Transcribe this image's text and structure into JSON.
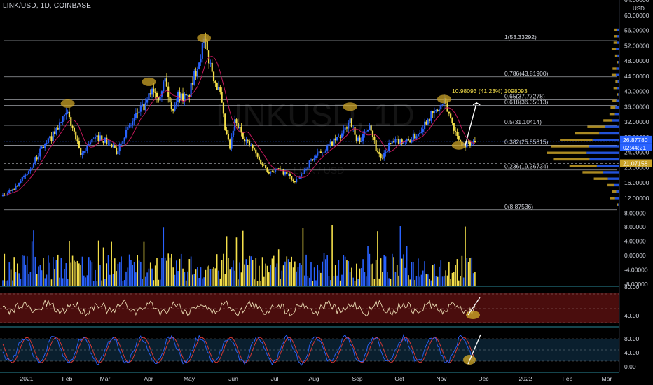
{
  "header": {
    "title": "LINK/USD, 1D, COINBASE"
  },
  "watermark": {
    "big": "LINKUSD, 1D",
    "small": "LINK / USD"
  },
  "colors": {
    "bg": "#000000",
    "up": "#2962ff",
    "down": "#f5e04a",
    "fib": "#d1d4dc",
    "ma": "#c2185b",
    "highlight": "#c9a227",
    "rsi_bg": "#4a0d0d",
    "rsi_line": "#e8d8b0",
    "stoch_k": "#2962ff",
    "stoch_d": "#e53935",
    "axis_text": "#d1d4dc",
    "sep": "#2a8a9a"
  },
  "chart_data": {
    "type": "line",
    "title": "LINK/USD, 1D, COINBASE",
    "x_labels": [
      "2021",
      "Feb",
      "Mar",
      "Apr",
      "May",
      "Jun",
      "Jul",
      "Aug",
      "Sep",
      "Oct",
      "Nov",
      "Dec",
      "2022",
      "Feb",
      "Mar"
    ],
    "price_axis": [
      "64.00000",
      "60.00000",
      "56.00000",
      "52.00000",
      "48.00000",
      "44.00000",
      "40.00000",
      "36.00000",
      "32.00000",
      "28.00000",
      "24.00000",
      "20.00000",
      "16.00000",
      "12.00000",
      "8.00000"
    ],
    "price_axis_unit": "USD",
    "price_markers": [
      {
        "label": "26.87780",
        "color": "#2962ff"
      },
      {
        "label": "21.07158",
        "color": "#c9a227"
      },
      {
        "label": "02:44:21",
        "color": "#2962ff"
      }
    ],
    "price_ylim": [
      7,
      64
    ],
    "fib_levels": [
      {
        "label": "1(53.33292)",
        "value": 53.33
      },
      {
        "label": "0.786(43.81900)",
        "value": 43.82
      },
      {
        "label": "0.65(37.77278)",
        "value": 37.77
      },
      {
        "label": "0.618(36.35013)",
        "value": 36.35
      },
      {
        "label": "0.5(31.10414)",
        "value": 31.1
      },
      {
        "label": "0.382(25.85815)",
        "value": 25.86
      },
      {
        "label": "0.236(19.36734)",
        "value": 19.37
      },
      {
        "label": "0(8.87536)",
        "value": 8.88
      }
    ],
    "measure_label": "10.98093 (41.23%) 1098093",
    "price_series": {
      "name": "LINK/USD",
      "points": [
        [
          0,
          12.5
        ],
        [
          8,
          15
        ],
        [
          16,
          19
        ],
        [
          24,
          25
        ],
        [
          30,
          28
        ],
        [
          36,
          32
        ],
        [
          40,
          34
        ],
        [
          44,
          29
        ],
        [
          48,
          23
        ],
        [
          54,
          27
        ],
        [
          60,
          28
        ],
        [
          66,
          26
        ],
        [
          70,
          24
        ],
        [
          74,
          28
        ],
        [
          80,
          32
        ],
        [
          84,
          35
        ],
        [
          88,
          36
        ],
        [
          92,
          41
        ],
        [
          96,
          39
        ],
        [
          100,
          43
        ],
        [
          104,
          35
        ],
        [
          108,
          39
        ],
        [
          114,
          38
        ],
        [
          118,
          44
        ],
        [
          122,
          50
        ],
        [
          124,
          53
        ],
        [
          128,
          47
        ],
        [
          130,
          44
        ],
        [
          134,
          39
        ],
        [
          137,
          30
        ],
        [
          140,
          25
        ],
        [
          143,
          32
        ],
        [
          146,
          30
        ],
        [
          150,
          27
        ],
        [
          154,
          25
        ],
        [
          158,
          22
        ],
        [
          164,
          19
        ],
        [
          170,
          19.5
        ],
        [
          176,
          18
        ],
        [
          180,
          16
        ],
        [
          184,
          18
        ],
        [
          190,
          22
        ],
        [
          196,
          24
        ],
        [
          202,
          26
        ],
        [
          210,
          29
        ],
        [
          214,
          33
        ],
        [
          218,
          27
        ],
        [
          222,
          28
        ],
        [
          226,
          32
        ],
        [
          230,
          25
        ],
        [
          234,
          22
        ],
        [
          238,
          26
        ],
        [
          244,
          27
        ],
        [
          250,
          27
        ],
        [
          256,
          29
        ],
        [
          262,
          33
        ],
        [
          268,
          35
        ],
        [
          272,
          37
        ],
        [
          276,
          33
        ],
        [
          280,
          28
        ],
        [
          284,
          26
        ],
        [
          288,
          26.5
        ],
        [
          291,
          26.9
        ]
      ]
    },
    "volume_axis": [
      "8.00000",
      "4.00000",
      "0.00000",
      "-4.00000",
      "-8.00000"
    ],
    "rsi_axis": [
      "80.00",
      "40.00"
    ],
    "stoch_axis": [
      "80.00",
      "40.00",
      "0.00"
    ],
    "x_max": 380,
    "last_index": 291
  }
}
